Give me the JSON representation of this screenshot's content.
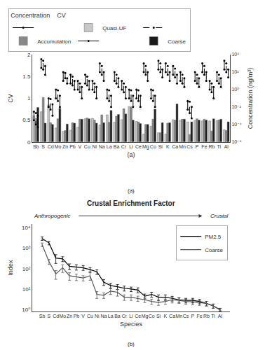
{
  "chart_data": [
    {
      "type": "bar",
      "legend_title": "Concentration    CV",
      "xlabel": "(a)",
      "ylabel": "CV",
      "y2label": "Concentration (ng/m³)",
      "categories": [
        "Sb",
        "S",
        "Cd",
        "Mo",
        "Zn",
        "Pb",
        "V",
        "Cu",
        "Ni",
        "Na",
        "La",
        "Ba",
        "Cr",
        "Li",
        "Ce",
        "Mg",
        "Co",
        "Si",
        "K",
        "Ca",
        "Mn",
        "Cs",
        "P",
        "Fe",
        "Rb",
        "Ti",
        "Al"
      ],
      "ylim": [
        0,
        2
      ],
      "yticks": [
        0,
        0.5,
        1,
        1.5,
        2
      ],
      "y2lim": [
        1e-06,
        10000
      ],
      "y2ticks": [
        {
          "value": 1e-06,
          "label": "10⁻⁶"
        },
        {
          "value": 0.0001,
          "label": "10⁻⁴"
        },
        {
          "value": 0.01,
          "label": "10⁻²"
        },
        {
          "value": 1,
          "label": "10⁰"
        },
        {
          "value": 100,
          "label": "10²"
        },
        {
          "value": 10000,
          "label": "10⁴"
        }
      ],
      "log": "y2",
      "grid": false,
      "legend": "top",
      "series": [
        {
          "name": "Quasi-UF",
          "color": "#c8c8c8",
          "values": [
            0.6,
            0.69,
            0.85,
            0.32,
            0.24,
            0.27,
            0.34,
            0.53,
            0.54,
            0.39,
            0.62,
            0.45,
            0.51,
            0.81,
            0.47,
            0.18,
            0.36,
            0.21,
            0.18,
            0.51,
            0.5,
            0.46,
            0.49,
            0.48,
            0.48,
            0.49,
            0.28
          ]
        },
        {
          "name": "Accumulation",
          "color": "#888888",
          "values": [
            0.47,
            1.02,
            0.44,
            0.53,
            0.26,
            0.44,
            0.52,
            0.55,
            0.5,
            0.62,
            0.45,
            0.59,
            0.76,
            0.8,
            0.46,
            0.4,
            0.52,
            0.21,
            0.43,
            0.5,
            0.52,
            0.17,
            0.53,
            0.52,
            0.25,
            0.5,
            0.26
          ]
        },
        {
          "name": "Coarse",
          "color": "#1a1a1a",
          "values": [
            0.79,
            0.43,
            0.4,
            0.77,
            0.41,
            0.43,
            0.52,
            0.53,
            0.43,
            0.44,
            0.72,
            0.63,
            0.64,
            0.5,
            0.42,
            0.4,
            0.75,
            0.44,
            0.44,
            0.87,
            0.52,
            0.46,
            0.5,
            0.5,
            0.53,
            0.52,
            0.46
          ]
        },
        {
          "type": "range",
          "axis": "y2",
          "color": "#000000",
          "line_style": "solid",
          "marker": "circle",
          "low": [
            0.0003,
            300,
            0.01,
            0.1,
            10,
            5,
            1,
            5,
            1,
            100,
            0.1,
            10,
            1,
            0.1,
            0.1,
            100,
            0.1,
            200,
            100,
            50,
            10,
            0.005,
            10,
            100,
            1,
            10,
            200
          ],
          "high": [
            0.003,
            3000,
            0.1,
            1.0,
            100,
            50,
            10,
            50,
            10,
            1000,
            1.0,
            100,
            10,
            1.0,
            1.0,
            1000,
            1.0,
            2000,
            1000,
            500,
            100,
            0.05,
            100,
            1000,
            10,
            100,
            2000
          ]
        },
        {
          "type": "range",
          "axis": "y2",
          "color": "#000000",
          "line_style": "dashed",
          "marker": "circle",
          "low": [
            0.0001,
            200,
            0.005,
            0.05,
            20,
            3,
            0.5,
            3,
            0.5,
            50,
            0.05,
            5,
            0.5,
            0.05,
            0.05,
            50,
            0.05,
            100,
            50,
            25,
            5,
            0.002,
            5,
            50,
            0.5,
            5,
            100
          ],
          "high": [
            0.002,
            2000,
            0.08,
            0.8,
            80,
            30,
            5,
            30,
            5,
            500,
            0.8,
            50,
            5,
            0.8,
            0.8,
            500,
            0.8,
            1000,
            500,
            250,
            50,
            0.04,
            50,
            500,
            5,
            50,
            1000
          ]
        },
        {
          "type": "range",
          "axis": "y2",
          "color": "#000000",
          "line_style": "solid",
          "marker": "circle",
          "low": [
            5e-05,
            50,
            0.001,
            0.01,
            5,
            1,
            0.1,
            1,
            0.1,
            10,
            0.01,
            2,
            0.1,
            0.01,
            0.01,
            10,
            0.01,
            25,
            10,
            5,
            2,
            0.0005,
            2,
            10,
            0.1,
            2,
            25
          ],
          "high": [
            0.001,
            500,
            0.02,
            0.2,
            20,
            10,
            2,
            10,
            2,
            100,
            0.2,
            20,
            2,
            0.2,
            0.2,
            100,
            0.2,
            200,
            100,
            50,
            20,
            0.01,
            20,
            100,
            2,
            20,
            200
          ]
        }
      ]
    },
    {
      "type": "line",
      "title": "Crustal Enrichment Factor",
      "xlabel": "Species",
      "ylabel": "Index",
      "categories": [
        "Sb",
        "S",
        "Cd",
        "Mo",
        "Zn",
        "Pb",
        "V",
        "Cu",
        "Ni",
        "Na",
        "La",
        "Ba",
        "Cr",
        "Li",
        "Ce",
        "Mg",
        "Co",
        "Si",
        "K",
        "Ca",
        "Mn",
        "Cs",
        "P",
        "Fe",
        "Rb",
        "Ti",
        "Al"
      ],
      "ylim": [
        0.8,
        15000
      ],
      "yticks": [
        {
          "value": 1,
          "label": "10⁰"
        },
        {
          "value": 10,
          "label": "10¹"
        },
        {
          "value": 100,
          "label": "10²"
        },
        {
          "value": 1000,
          "label": "10³"
        },
        {
          "value": 10000,
          "label": "10⁴"
        }
      ],
      "log": "y",
      "grid": false,
      "legend": "upper right",
      "annotations": [
        "Anthropogenic",
        "Crustal",
        "(a)",
        "(b)"
      ],
      "series": [
        {
          "name": "PM2.5",
          "color": "#000000",
          "values": [
            3000,
            1800,
            330,
            300,
            130,
            120,
            110,
            90,
            70,
            22,
            15,
            13,
            11,
            10,
            9,
            4.5,
            5.5,
            4.0,
            4.0,
            3.5,
            3.0,
            2.8,
            2.8,
            2.5,
            2.0,
            1.5,
            1.0
          ],
          "errors": [
            600,
            350,
            150,
            80,
            40,
            35,
            28,
            22,
            18,
            7,
            4,
            3.5,
            3,
            2.5,
            2.5,
            1.2,
            1.5,
            1.2,
            1.2,
            0.9,
            0.8,
            0.7,
            0.7,
            0.6,
            0.5,
            0.35,
            0.15
          ]
        },
        {
          "name": "Coarse",
          "color": "#555555",
          "values": [
            1500,
            220,
            55,
            110,
            45,
            40,
            35,
            45,
            5.5,
            5,
            8,
            7,
            4,
            4,
            3.5,
            3.0,
            2.5,
            2.2,
            2.5,
            3.0,
            2.8,
            2.5,
            2.4,
            2.2,
            2.0,
            1.5,
            0.95
          ],
          "errors": [
            300,
            60,
            25,
            45,
            18,
            14,
            10,
            18,
            2,
            1.5,
            2.5,
            2.5,
            1.2,
            1.2,
            1.0,
            0.8,
            0.7,
            0.6,
            0.7,
            0.9,
            0.8,
            0.7,
            0.7,
            0.6,
            0.5,
            0.35,
            0.15
          ]
        }
      ]
    }
  ]
}
